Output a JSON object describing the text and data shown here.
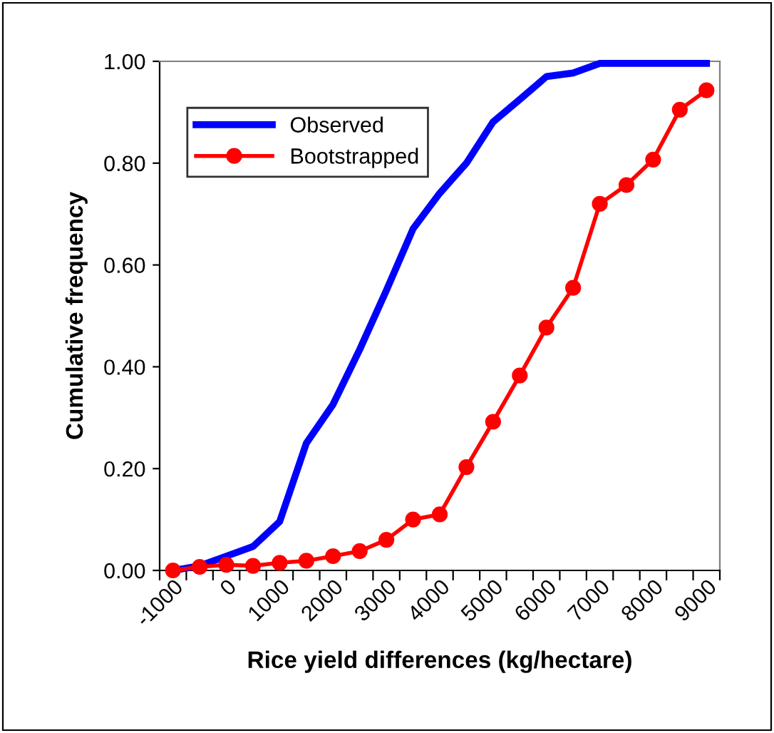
{
  "chart_data": {
    "type": "line",
    "xlabel": "Rice yield differences (kg/hectare)",
    "ylabel": "Cumulative frequency",
    "categories": [
      "-1000",
      null,
      "0",
      null,
      "1000",
      null,
      "2000",
      null,
      "3000",
      null,
      "4000",
      null,
      "5000",
      null,
      "6000",
      null,
      "7000",
      null,
      "8000",
      null,
      "9000"
    ],
    "series": [
      {
        "name": "Observed",
        "color": "#0000ff",
        "marker": "none",
        "values": [
          0,
          0.009,
          0.028,
          0.047,
          0.096,
          0.25,
          0.326,
          0.434,
          0.55,
          0.671,
          0.741,
          0.8,
          0.881,
          0.925,
          0.97,
          0.977,
          0.996,
          0.996,
          0.996,
          0.996,
          0.996
        ]
      },
      {
        "name": "Bootstrapped",
        "color": "#ff0000",
        "marker": "circle",
        "values": [
          0,
          0.007,
          0.011,
          0.009,
          0.015,
          0.019,
          0.028,
          0.038,
          0.06,
          0.1,
          0.11,
          0.203,
          0.292,
          0.383,
          0.477,
          0.555,
          0.72,
          0.757,
          0.807,
          0.905,
          0.943
        ]
      }
    ],
    "ylim": [
      0,
      1
    ],
    "yticks": [
      {
        "value": 0,
        "label": "0.00"
      },
      {
        "value": 0.2,
        "label": "0.20"
      },
      {
        "value": 0.4,
        "label": "0.40"
      },
      {
        "value": 0.6,
        "label": "0.60"
      },
      {
        "value": 0.8,
        "label": "0.80"
      },
      {
        "value": 1,
        "label": "1.00"
      }
    ],
    "grid": false,
    "legend": "top left"
  }
}
